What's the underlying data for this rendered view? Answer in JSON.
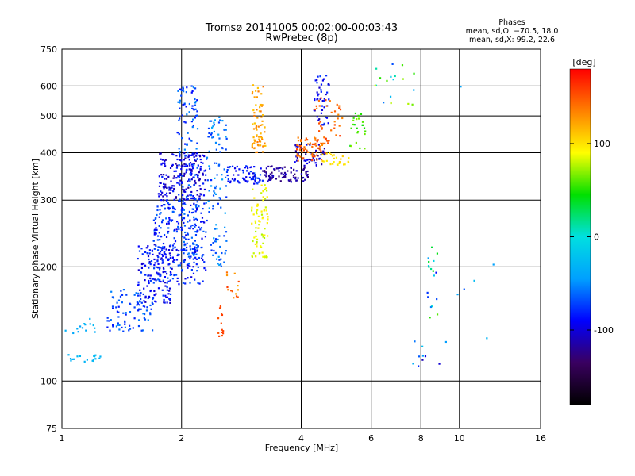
{
  "chart_data": {
    "type": "scatter",
    "title": "Tromsø 20141005 00:02:00-00:03:43",
    "subtitle": "RwPretec (8p)",
    "xlabel": "Frequency [MHz]",
    "ylabel": "Stationary phase Virtual Height [km]",
    "x_scale": "log",
    "y_scale": "log",
    "xlim": [
      1,
      16
    ],
    "ylim": [
      75,
      750
    ],
    "x_ticks": [
      1,
      2,
      4,
      6,
      8,
      10,
      16
    ],
    "x_tick_labels": [
      "1",
      "2",
      "4",
      "6",
      "8",
      "10",
      "16"
    ],
    "y_ticks": [
      75,
      100,
      200,
      300,
      400,
      500,
      600,
      750
    ],
    "y_tick_labels": [
      "75",
      "100",
      "200",
      "300",
      "400",
      "500",
      "600",
      "750"
    ],
    "grid": true,
    "info_lines": [
      "Phases",
      "mean, sd,O: −70.5, 18.0",
      "mean, sd,X:  99.2, 22.6"
    ],
    "colorbar": {
      "label": "[deg]",
      "range": [
        -180,
        180
      ],
      "ticks": [
        100,
        0,
        -100
      ],
      "tick_labels": [
        "100",
        "0",
        "-100"
      ],
      "colors": [
        "#000000",
        "#3a0060",
        "#0000ff",
        "#00a0ff",
        "#00e0e0",
        "#00e000",
        "#ffff00",
        "#ff8000",
        "#ff0000"
      ]
    },
    "point_groups": [
      {
        "x": [
          1.0,
          1.25
        ],
        "y": [
          112,
          118
        ],
        "phase": [
          -25,
          -35
        ],
        "n": 18
      },
      {
        "x": [
          1.02,
          1.22
        ],
        "y": [
          132,
          146
        ],
        "phase": [
          -28,
          -45
        ],
        "n": 14
      },
      {
        "x": [
          1.3,
          1.7
        ],
        "y": [
          135,
          175
        ],
        "phase": [
          -50,
          -85
        ],
        "n": 90
      },
      {
        "x": [
          1.55,
          1.9
        ],
        "y": [
          160,
          230
        ],
        "phase": [
          -70,
          -110
        ],
        "n": 140
      },
      {
        "x": [
          1.7,
          2.3
        ],
        "y": [
          180,
          300
        ],
        "phase": [
          -60,
          -100
        ],
        "n": 260
      },
      {
        "x": [
          1.75,
          2.3
        ],
        "y": [
          300,
          400
        ],
        "phase": [
          -80,
          -120
        ],
        "n": 200
      },
      {
        "x": [
          1.95,
          2.2
        ],
        "y": [
          200,
          610
        ],
        "phase": [
          -50,
          -90
        ],
        "n": 150
      },
      {
        "x": [
          2.3,
          2.6
        ],
        "y": [
          200,
          500
        ],
        "phase": [
          -40,
          -80
        ],
        "n": 110
      },
      {
        "x": [
          2.6,
          3.2
        ],
        "y": [
          330,
          370
        ],
        "phase": [
          -70,
          -100
        ],
        "n": 70
      },
      {
        "x": [
          3.2,
          4.2
        ],
        "y": [
          335,
          370
        ],
        "phase": [
          -100,
          -130
        ],
        "n": 80
      },
      {
        "x": [
          3.8,
          4.6
        ],
        "y": [
          370,
          420
        ],
        "phase": [
          -90,
          -120
        ],
        "n": 50
      },
      {
        "x": [
          4.3,
          4.7
        ],
        "y": [
          470,
          640
        ],
        "phase": [
          -70,
          -110
        ],
        "n": 45
      },
      {
        "x": [
          3.0,
          3.25
        ],
        "y": [
          400,
          610
        ],
        "phase": [
          110,
          140
        ],
        "n": 70
      },
      {
        "x": [
          3.0,
          3.3
        ],
        "y": [
          210,
          330
        ],
        "phase": [
          75,
          100
        ],
        "n": 80
      },
      {
        "x": [
          3.9,
          4.6
        ],
        "y": [
          380,
          440
        ],
        "phase": [
          130,
          160
        ],
        "n": 60
      },
      {
        "x": [
          4.3,
          5.1
        ],
        "y": [
          420,
          560
        ],
        "phase": [
          130,
          165
        ],
        "n": 40
      },
      {
        "x": [
          4.5,
          5.3
        ],
        "y": [
          370,
          400
        ],
        "phase": [
          90,
          110
        ],
        "n": 25
      },
      {
        "x": [
          5.3,
          5.8
        ],
        "y": [
          410,
          520
        ],
        "phase": [
          40,
          70
        ],
        "n": 25
      },
      {
        "x": [
          2.45,
          2.55
        ],
        "y": [
          130,
          160
        ],
        "phase": [
          150,
          160
        ],
        "n": 14
      },
      {
        "x": [
          2.6,
          2.8
        ],
        "y": [
          165,
          195
        ],
        "phase": [
          120,
          160
        ],
        "n": 14
      },
      {
        "x": [
          6.1,
          7.8
        ],
        "y": [
          530,
          700
        ],
        "phase": [
          -80,
          100
        ],
        "n": 18
      },
      {
        "x": [
          8.3,
          8.8
        ],
        "y": [
          140,
          230
        ],
        "phase": [
          -90,
          60
        ],
        "n": 18
      },
      {
        "x": [
          7.6,
          9.3
        ],
        "y": [
          105,
          128
        ],
        "phase": [
          -110,
          -20
        ],
        "n": 10
      },
      {
        "x": [
          9.8,
          12.5
        ],
        "y": [
          110,
          620
        ],
        "phase": [
          -120,
          50
        ],
        "n": 6
      }
    ]
  }
}
